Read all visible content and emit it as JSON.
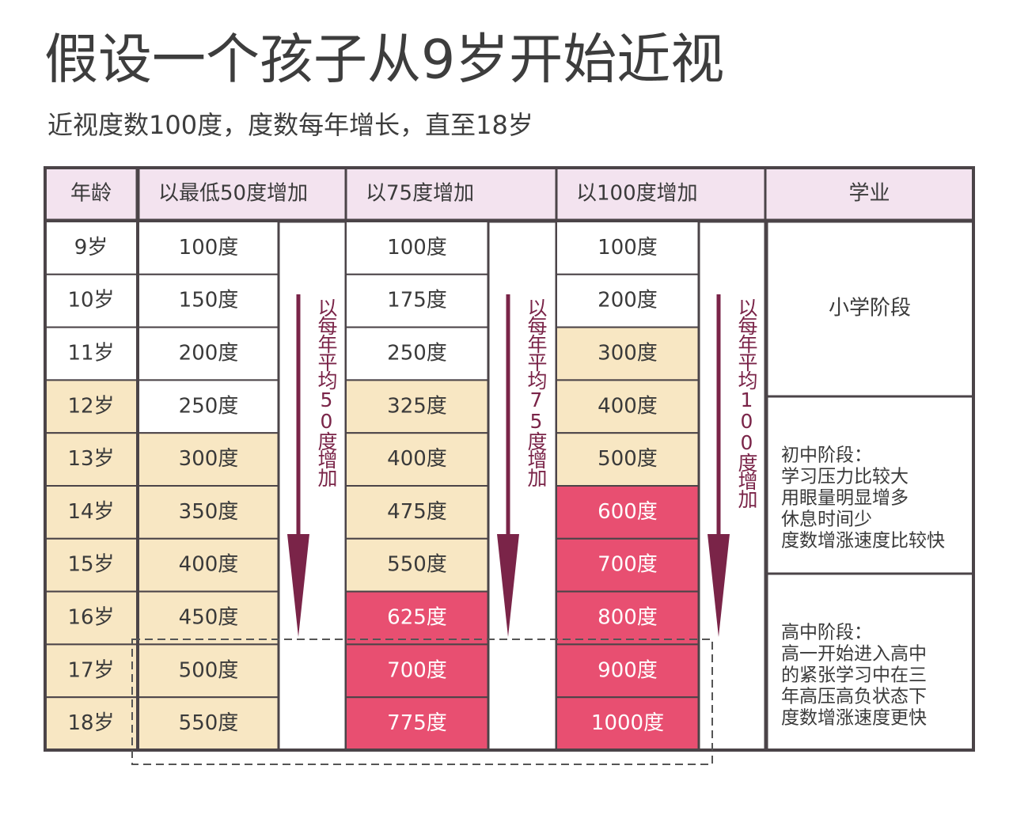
{
  "title": "假设一个孩子从9岁开始近视",
  "subtitle": "近视度数100度，度数每年增长，直至18岁",
  "table": {
    "headers": [
      "年龄",
      "以最低50度增加",
      "以75度增加",
      "以100度增加",
      "学业"
    ],
    "ages": [
      "9岁",
      "10岁",
      "11岁",
      "12岁",
      "13岁",
      "14岁",
      "15岁",
      "16岁",
      "17岁",
      "18岁"
    ],
    "columns": [
      {
        "values": [
          "100度",
          "150度",
          "200度",
          "250度",
          "300度",
          "350度",
          "400度",
          "450度",
          "500度",
          "550度"
        ],
        "arrow_label": "以每年平均50度增加"
      },
      {
        "values": [
          "100度",
          "175度",
          "250度",
          "325度",
          "400度",
          "475度",
          "550度",
          "625度",
          "700度",
          "775度"
        ],
        "arrow_label": "以每年平均75度增加"
      },
      {
        "values": [
          "100度",
          "200度",
          "300度",
          "400度",
          "500度",
          "600度",
          "700度",
          "800度",
          "900度",
          "1000度"
        ],
        "arrow_label": "以每年平均100度增加"
      }
    ],
    "stages": [
      {
        "lines": [
          "小学阶段"
        ]
      },
      {
        "lines": [
          "初中阶段：",
          "学习压力比较大",
          "用眼量明显增多",
          "休息时间少",
          "度数增涨速度比较快"
        ]
      },
      {
        "lines": [
          "高中阶段：",
          "高一开始进入高中",
          "的紧张学习中在三",
          "年高压高负状态下",
          "度数增涨速度更快"
        ]
      }
    ]
  }
}
